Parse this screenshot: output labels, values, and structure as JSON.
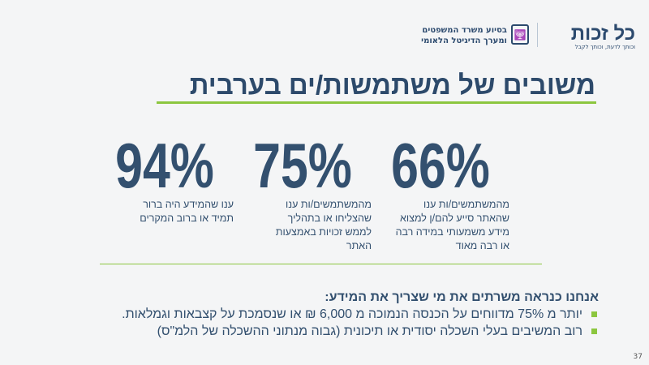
{
  "header": {
    "logo_text": "כל זכות",
    "logo_tagline": "וכותך לדעת, וכותך לקבל",
    "partner_line1": "בסיוע משרד המשפטים",
    "partner_line2": "ומערך הדיגיטל הלאומי"
  },
  "title": "משובים של משתמשות/ים בערבית",
  "stats": [
    {
      "value": "66%",
      "desc": [
        "מהמשתמשים/ות  ענו",
        "שהאתר סייע להם/ן למצוא",
        "מידע משמעותי במידה רבה",
        "או רבה מאוד"
      ]
    },
    {
      "value": "75%",
      "desc": [
        "מהמשתמשים/ות  ענו",
        "שהצליחו או בתהליך",
        "לממש זכויות באמצעות",
        "האתר"
      ]
    },
    {
      "value": "94%",
      "desc": [
        "ענו שהמידע היה ברור",
        "תמיד או ברוב המקרים"
      ]
    }
  ],
  "summary": {
    "heading": "אנחנו כנראה משרתים את מי שצריך את המידע:",
    "bullets": [
      "יותר מ 75% מדווחים על הכנסה הנמוכה מ 6,000 ₪ או שנסמכת על קצבאות וגמלאות.",
      "רוב המשיבים בעלי השכלה יסודית או תיכונית (גבוה מנתוני ההשכלה של הלמ\"ס)"
    ]
  },
  "page_number": "37",
  "colors": {
    "primary": "#2d4a6b",
    "accent": "#8cc63f"
  }
}
